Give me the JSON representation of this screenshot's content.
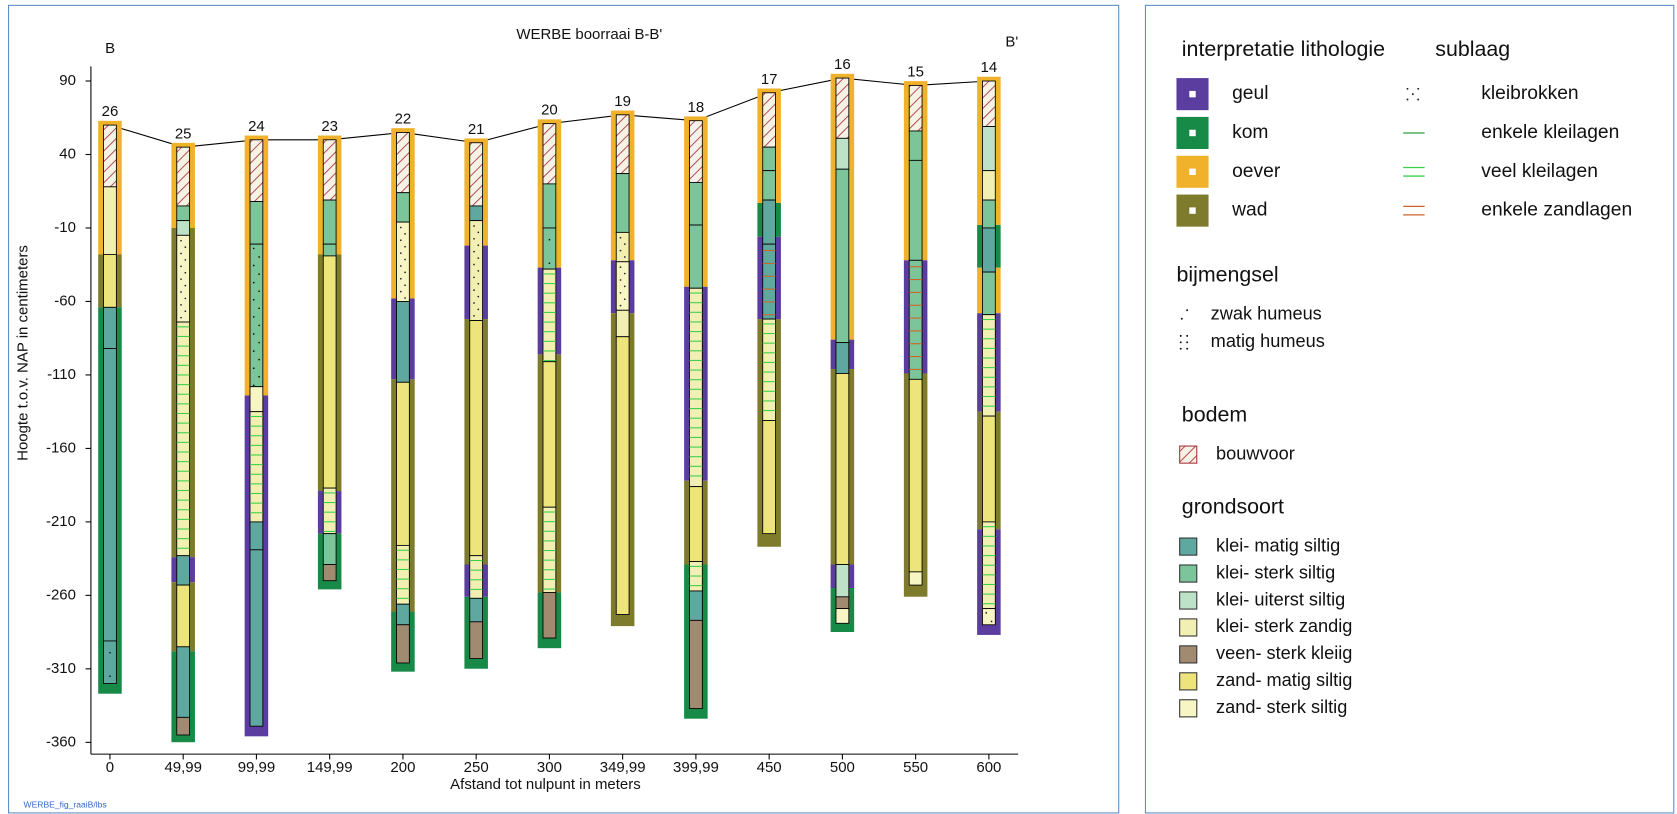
{
  "chart_data": {
    "type": "borehole-section",
    "title": "WERBE boorraai B-B'",
    "start_label": "B",
    "end_label": "B'",
    "x_label": "Afstand tot nulpunt in meters",
    "y_label": "Hoogte t.o.v. NAP in centimeters",
    "footnote": "WERBE_fig_raaiB/lbs",
    "xlim": [
      -13,
      620
    ],
    "ylim": [
      -368,
      100
    ],
    "xticks": [
      0,
      {
        "value": 49.99,
        "label": "49,99"
      },
      {
        "value": 99.99,
        "label": "99,99"
      },
      {
        "value": 149.99,
        "label": "149,99"
      },
      200,
      250,
      300,
      {
        "value": 349.99,
        "label": "349,99"
      },
      {
        "value": 399.99,
        "label": "399,99"
      },
      450,
      500,
      550,
      600
    ],
    "yticks": [
      90,
      40,
      -10,
      -60,
      -110,
      -160,
      -210,
      -260,
      -310,
      -360
    ],
    "interpretation_legend": {
      "title": "interpretatie lithologie",
      "items": [
        {
          "name": "geul",
          "color": "#5a3d9e"
        },
        {
          "name": "kom",
          "color": "#178a47"
        },
        {
          "name": "oever",
          "color": "#f0b22a"
        },
        {
          "name": "wad",
          "color": "#7e7c2c"
        }
      ]
    },
    "sublaag_legend": {
      "title": "sublaag",
      "items": [
        {
          "name": "kleibrokken",
          "color": "#222222"
        },
        {
          "name": "enkele kleilagen",
          "color": "#2e9e3e"
        },
        {
          "name": "veel kleilagen",
          "color": "#3ccf4c"
        },
        {
          "name": "enkele zandlagen",
          "color": "#c8642a"
        }
      ]
    },
    "bijmengsel_legend": {
      "title": "bijmengsel",
      "items": [
        {
          "name": "zwak humeus"
        },
        {
          "name": "matig humeus"
        }
      ]
    },
    "bodem_legend": {
      "title": "bodem",
      "items": [
        {
          "name": "bouwvoor",
          "color": "#a8323a"
        }
      ]
    },
    "grondsoort_legend": {
      "title": "grondsoort",
      "items": [
        {
          "name": "klei- matig siltig",
          "color": "#5fa8a0"
        },
        {
          "name": "klei- sterk siltig",
          "color": "#7cc49a"
        },
        {
          "name": "klei- uiterst siltig",
          "color": "#bde2c8"
        },
        {
          "name": "klei- sterk zandig",
          "color": "#f2efb2"
        },
        {
          "name": "veen- sterk kleiig",
          "color": "#a08a70"
        },
        {
          "name": "zand- matig siltig",
          "color": "#ede47c"
        },
        {
          "name": "zand- sterk siltig",
          "color": "#f8f5c4"
        }
      ]
    },
    "boreholes": [
      {
        "name": "26",
        "x": 0,
        "top": 60,
        "interpretation": [
          {
            "class": "oever",
            "bottom": -28
          },
          {
            "class": "wad",
            "bottom": -64
          },
          {
            "class": "kom",
            "bottom": -324
          }
        ],
        "layers": [
          {
            "soil": "bouwvoor",
            "bottom": 18
          },
          {
            "soil": "klei- sterk zandig",
            "bottom": -28
          },
          {
            "soil": "zand- matig siltig",
            "bottom": -64
          },
          {
            "soil": "klei- matig siltig",
            "bottom": -92
          },
          {
            "soil": "klei- matig siltig",
            "bottom": -291
          },
          {
            "soil": "klei- matig siltig",
            "bottom": -320,
            "bijmengsel": "zwak humeus"
          }
        ]
      },
      {
        "name": "25",
        "x": 49.99,
        "top": 45,
        "interpretation": [
          {
            "class": "oever",
            "bottom": -10
          },
          {
            "class": "wad",
            "bottom": -234
          },
          {
            "class": "geul",
            "bottom": -251
          },
          {
            "class": "wad",
            "bottom": -298
          },
          {
            "class": "kom",
            "bottom": -357
          }
        ],
        "layers": [
          {
            "soil": "bouwvoor",
            "bottom": 5
          },
          {
            "soil": "klei- sterk siltig",
            "bottom": -5
          },
          {
            "soil": "klei- uiterst siltig",
            "bottom": -15
          },
          {
            "soil": "zand- sterk siltig",
            "bottom": -74,
            "sublaag": "kleibrokken"
          },
          {
            "soil": "klei- sterk zandig",
            "bottom": -233,
            "sublaag": "veel kleilagen"
          },
          {
            "soil": "klei- matig siltig",
            "bottom": -253
          },
          {
            "soil": "zand- matig siltig",
            "bottom": -295
          },
          {
            "soil": "klei- matig siltig",
            "bottom": -343
          },
          {
            "soil": "veen- sterk kleiig",
            "bottom": -355
          }
        ]
      },
      {
        "name": "24",
        "x": 99.99,
        "top": 50,
        "interpretation": [
          {
            "class": "oever",
            "bottom": -124
          },
          {
            "class": "geul",
            "bottom": -353
          }
        ],
        "layers": [
          {
            "soil": "bouwvoor",
            "bottom": 8
          },
          {
            "soil": "klei- sterk siltig",
            "bottom": -21
          },
          {
            "soil": "klei- sterk siltig",
            "bottom": -118,
            "bijmengsel": "matig humeus"
          },
          {
            "soil": "zand- sterk siltig",
            "bottom": -135
          },
          {
            "soil": "klei- sterk zandig",
            "bottom": -210,
            "sublaag": "veel kleilagen"
          },
          {
            "soil": "klei- matig siltig",
            "bottom": -229
          },
          {
            "soil": "klei- matig siltig",
            "bottom": -349
          }
        ]
      },
      {
        "name": "23",
        "x": 149.99,
        "top": 50,
        "interpretation": [
          {
            "class": "oever",
            "bottom": -28
          },
          {
            "class": "wad",
            "bottom": -189
          },
          {
            "class": "geul",
            "bottom": -218
          },
          {
            "class": "kom",
            "bottom": -253
          }
        ],
        "layers": [
          {
            "soil": "bouwvoor",
            "bottom": 9
          },
          {
            "soil": "klei- sterk siltig",
            "bottom": -21
          },
          {
            "soil": "klei- sterk siltig",
            "bottom": -29,
            "bijmengsel": "zwak humeus"
          },
          {
            "soil": "zand- matig siltig",
            "bottom": -187
          },
          {
            "soil": "klei- sterk zandig",
            "bottom": -218,
            "sublaag": "veel kleilagen"
          },
          {
            "soil": "klei- sterk siltig",
            "bottom": -239
          },
          {
            "soil": "veen- sterk kleiig",
            "bottom": -250
          }
        ]
      },
      {
        "name": "22",
        "x": 200,
        "top": 55,
        "interpretation": [
          {
            "class": "oever",
            "bottom": -58
          },
          {
            "class": "geul",
            "bottom": -113
          },
          {
            "class": "wad",
            "bottom": -271
          },
          {
            "class": "kom",
            "bottom": -309
          }
        ],
        "layers": [
          {
            "soil": "bouwvoor",
            "bottom": 14
          },
          {
            "soil": "klei- sterk siltig",
            "bottom": -6
          },
          {
            "soil": "zand- sterk siltig",
            "bottom": -60,
            "sublaag": "kleibrokken"
          },
          {
            "soil": "klei- matig siltig",
            "bottom": -115
          },
          {
            "soil": "zand- matig siltig",
            "bottom": -226
          },
          {
            "soil": "klei- sterk zandig",
            "bottom": -266,
            "sublaag": "veel kleilagen"
          },
          {
            "soil": "klei- matig siltig",
            "bottom": -280
          },
          {
            "soil": "veen- sterk kleiig",
            "bottom": -306
          }
        ]
      },
      {
        "name": "21",
        "x": 250,
        "top": 48,
        "interpretation": [
          {
            "class": "oever",
            "bottom": -22
          },
          {
            "class": "geul",
            "bottom": -72
          },
          {
            "class": "wad",
            "bottom": -239
          },
          {
            "class": "geul",
            "bottom": -261
          },
          {
            "class": "kom",
            "bottom": -307
          }
        ],
        "layers": [
          {
            "soil": "bouwvoor",
            "bottom": 5
          },
          {
            "soil": "klei- matig siltig",
            "bottom": -5
          },
          {
            "soil": "klei- sterk zandig",
            "bottom": -73,
            "sublaag": "kleibrokken"
          },
          {
            "soil": "zand- matig siltig",
            "bottom": -233
          },
          {
            "soil": "klei- sterk zandig",
            "bottom": -262,
            "sublaag": "veel kleilagen"
          },
          {
            "soil": "klei- matig siltig",
            "bottom": -278
          },
          {
            "soil": "veen- sterk kleiig",
            "bottom": -303
          }
        ]
      },
      {
        "name": "20",
        "x": 300,
        "top": 61,
        "interpretation": [
          {
            "class": "oever",
            "bottom": -37
          },
          {
            "class": "geul",
            "bottom": -96
          },
          {
            "class": "wad",
            "bottom": -258
          },
          {
            "class": "kom",
            "bottom": -293
          }
        ],
        "layers": [
          {
            "soil": "bouwvoor",
            "bottom": 20
          },
          {
            "soil": "klei- sterk siltig",
            "bottom": -10
          },
          {
            "soil": "klei- sterk siltig",
            "bottom": -38,
            "bijmengsel": "zwak humeus"
          },
          {
            "soil": "klei- sterk zandig",
            "bottom": -101,
            "sublaag": "veel kleilagen"
          },
          {
            "soil": "zand- matig siltig",
            "bottom": -200
          },
          {
            "soil": "klei- sterk zandig",
            "bottom": -258,
            "sublaag": "veel kleilagen"
          },
          {
            "soil": "veen- sterk kleiig",
            "bottom": -289
          }
        ]
      },
      {
        "name": "19",
        "x": 349.99,
        "top": 67,
        "interpretation": [
          {
            "class": "oever",
            "bottom": -32
          },
          {
            "class": "geul",
            "bottom": -68
          },
          {
            "class": "wad",
            "bottom": -278
          }
        ],
        "layers": [
          {
            "soil": "bouwvoor",
            "bottom": 27
          },
          {
            "soil": "klei- sterk siltig",
            "bottom": -13
          },
          {
            "soil": "klei- sterk zandig",
            "bottom": -33,
            "sublaag": "kleibrokken"
          },
          {
            "soil": "zand- sterk siltig",
            "bottom": -66,
            "sublaag": "kleibrokken"
          },
          {
            "soil": "klei- sterk zandig",
            "bottom": -84
          },
          {
            "soil": "zand- matig siltig",
            "bottom": -273
          }
        ]
      },
      {
        "name": "18",
        "x": 399.99,
        "top": 63,
        "interpretation": [
          {
            "class": "oever",
            "bottom": -50
          },
          {
            "class": "geul",
            "bottom": -182
          },
          {
            "class": "wad",
            "bottom": -239
          },
          {
            "class": "kom",
            "bottom": -341
          }
        ],
        "layers": [
          {
            "soil": "bouwvoor",
            "bottom": 21
          },
          {
            "soil": "klei- sterk siltig",
            "bottom": -8
          },
          {
            "soil": "klei- sterk siltig",
            "bottom": -51
          },
          {
            "soil": "klei- sterk zandig",
            "bottom": -186,
            "sublaag": "veel kleilagen"
          },
          {
            "soil": "zand- matig siltig",
            "bottom": -237
          },
          {
            "soil": "klei- sterk zandig",
            "bottom": -257,
            "sublaag": "veel kleilagen"
          },
          {
            "soil": "klei- matig siltig",
            "bottom": -277
          },
          {
            "soil": "veen- sterk kleiig",
            "bottom": -337
          }
        ]
      },
      {
        "name": "17",
        "x": 450,
        "top": 82,
        "interpretation": [
          {
            "class": "oever",
            "bottom": 7
          },
          {
            "class": "kom",
            "bottom": -16
          },
          {
            "class": "geul",
            "bottom": -72
          },
          {
            "class": "wad",
            "bottom": -224
          }
        ],
        "layers": [
          {
            "soil": "bouwvoor",
            "bottom": 45
          },
          {
            "soil": "klei- sterk siltig",
            "bottom": 29
          },
          {
            "soil": "klei- sterk siltig",
            "bottom": 9
          },
          {
            "soil": "klei- matig siltig",
            "bottom": -21
          },
          {
            "soil": "klei- matig siltig",
            "bottom": -72,
            "sublaag": "enkele zandlagen"
          },
          {
            "soil": "klei- sterk zandig",
            "bottom": -141,
            "sublaag": "veel kleilagen"
          },
          {
            "soil": "zand- matig siltig",
            "bottom": -218
          }
        ]
      },
      {
        "name": "16",
        "x": 500,
        "top": 92,
        "interpretation": [
          {
            "class": "oever",
            "bottom": -86
          },
          {
            "class": "geul",
            "bottom": -106
          },
          {
            "class": "wad",
            "bottom": -239
          },
          {
            "class": "geul",
            "bottom": -255
          },
          {
            "class": "kom",
            "bottom": -282
          }
        ],
        "layers": [
          {
            "soil": "bouwvoor",
            "bottom": 51
          },
          {
            "soil": "klei- uiterst siltig",
            "bottom": 30
          },
          {
            "soil": "klei- sterk siltig",
            "bottom": -88
          },
          {
            "soil": "klei- matig siltig",
            "bottom": -109
          },
          {
            "soil": "zand- matig siltig",
            "bottom": -239
          },
          {
            "soil": "klei- uiterst siltig",
            "bottom": -261
          },
          {
            "soil": "veen- sterk kleiig",
            "bottom": -269
          },
          {
            "soil": "zand- sterk siltig",
            "bottom": -279
          }
        ]
      },
      {
        "name": "15",
        "x": 550,
        "top": 87,
        "interpretation": [
          {
            "class": "oever",
            "bottom": -32
          },
          {
            "class": "geul",
            "bottom": -109
          },
          {
            "class": "wad",
            "bottom": -258
          }
        ],
        "layers": [
          {
            "soil": "bouwvoor",
            "bottom": 56
          },
          {
            "soil": "klei- sterk siltig",
            "bottom": 36
          },
          {
            "soil": "klei- sterk siltig",
            "bottom": -32
          },
          {
            "soil": "klei- sterk siltig",
            "bottom": -113,
            "sublaag": "enkele zandlagen"
          },
          {
            "soil": "zand- matig siltig",
            "bottom": -244
          },
          {
            "soil": "zand- sterk siltig",
            "bottom": -253
          }
        ]
      },
      {
        "name": "14",
        "x": 600,
        "top": 90,
        "interpretation": [
          {
            "class": "oever",
            "bottom": -8
          },
          {
            "class": "kom",
            "bottom": -37
          },
          {
            "class": "oever",
            "bottom": -68
          },
          {
            "class": "geul",
            "bottom": -135
          },
          {
            "class": "wad",
            "bottom": -215
          },
          {
            "class": "geul",
            "bottom": -284
          }
        ],
        "layers": [
          {
            "soil": "bouwvoor",
            "bottom": 59
          },
          {
            "soil": "klei- uiterst siltig",
            "bottom": 29
          },
          {
            "soil": "klei- sterk zandig",
            "bottom": 9
          },
          {
            "soil": "klei- sterk siltig",
            "bottom": -10
          },
          {
            "soil": "klei- matig siltig",
            "bottom": -40
          },
          {
            "soil": "klei- sterk siltig",
            "bottom": -69
          },
          {
            "soil": "klei- sterk zandig",
            "bottom": -138,
            "sublaag": "veel kleilagen"
          },
          {
            "soil": "zand- matig siltig",
            "bottom": -210
          },
          {
            "soil": "klei- sterk zandig",
            "bottom": -269,
            "sublaag": "veel kleilagen"
          },
          {
            "soil": "zand- sterk siltig",
            "bottom": -280,
            "bijmengsel": "matig humeus"
          }
        ]
      }
    ]
  }
}
